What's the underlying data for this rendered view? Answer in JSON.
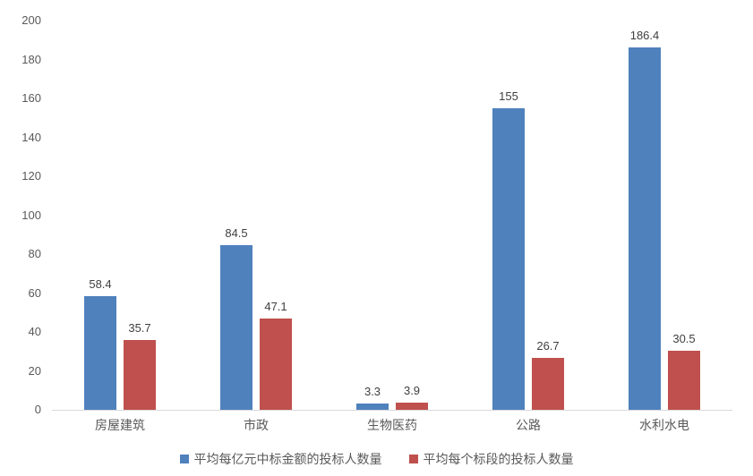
{
  "chart_data": {
    "type": "bar",
    "categories": [
      "房屋建筑",
      "市政",
      "生物医药",
      "公路",
      "水利水电"
    ],
    "series": [
      {
        "name": "平均每亿元中标金额的投标人数量",
        "color": "#4F81BD",
        "values": [
          58.4,
          84.5,
          3.3,
          155,
          186.4
        ],
        "value_labels": [
          "58.4",
          "84.5",
          "3.3",
          "155",
          "186.4"
        ]
      },
      {
        "name": "平均每个标段的投标人数量",
        "color": "#C0504D",
        "values": [
          35.7,
          47.1,
          3.9,
          26.7,
          30.5
        ],
        "value_labels": [
          "35.7",
          "47.1",
          "3.9",
          "26.7",
          "30.5"
        ]
      }
    ],
    "ylim": [
      0,
      200
    ],
    "ytick_interval": 20,
    "yticks": [
      0,
      20,
      40,
      60,
      80,
      100,
      120,
      140,
      160,
      180,
      200
    ],
    "grid": false,
    "legend_position": "bottom"
  },
  "colors": {
    "series_blue": "#4F81BD",
    "series_red": "#C0504D",
    "axis_line": "#D9D9D9",
    "axis_label_text": "#595959",
    "value_label_text": "#3F3F3F",
    "background": "#FFFFFF"
  },
  "legend": {
    "items": [
      {
        "label": "平均每亿元中标金额的投标人数量",
        "color": "#4F81BD"
      },
      {
        "label": "平均每个标段的投标人数量",
        "color": "#C0504D"
      }
    ]
  }
}
